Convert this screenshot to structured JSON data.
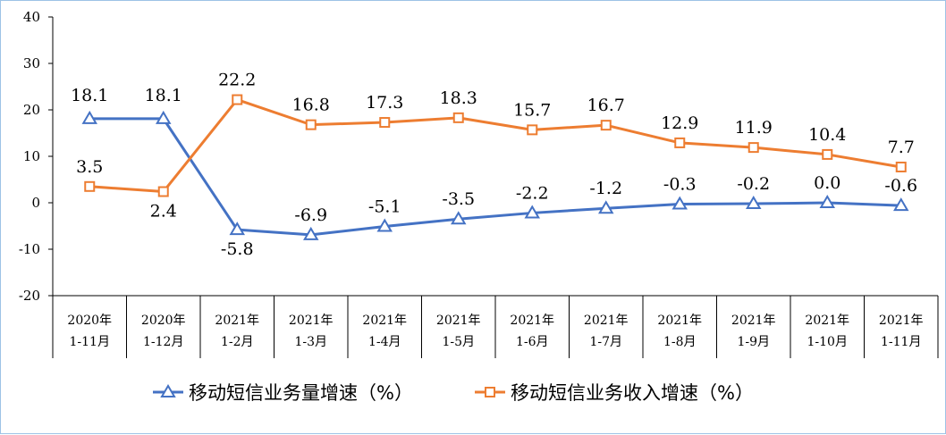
{
  "chart_data": {
    "type": "line",
    "title": "",
    "xlabel": "",
    "ylabel": "",
    "ylim": [
      -20,
      40
    ],
    "yticks": [
      -20,
      -10,
      0,
      10,
      20,
      30,
      40
    ],
    "categories": [
      [
        "2020年",
        "1-11月"
      ],
      [
        "2020年",
        "1-12月"
      ],
      [
        "2021年",
        "1-2月"
      ],
      [
        "2021年",
        "1-3月"
      ],
      [
        "2021年",
        "1-4月"
      ],
      [
        "2021年",
        "1-5月"
      ],
      [
        "2021年",
        "1-6月"
      ],
      [
        "2021年",
        "1-7月"
      ],
      [
        "2021年",
        "1-8月"
      ],
      [
        "2021年",
        "1-9月"
      ],
      [
        "2021年",
        "1-10月"
      ],
      [
        "2021年",
        "1-11月"
      ]
    ],
    "series": [
      {
        "name": "移动短信业务量增速（%）",
        "color": "#4472c4",
        "marker": "triangle",
        "values": [
          18.1,
          18.1,
          -5.8,
          -6.9,
          -5.1,
          -3.5,
          -2.2,
          -1.2,
          -0.3,
          -0.2,
          0.0,
          -0.6
        ],
        "labels": [
          "18.1",
          "18.1",
          "-5.8",
          "-6.9",
          "-5.1",
          "-3.5",
          "-2.2",
          "-1.2",
          "-0.3",
          "-0.2",
          "0.0",
          "-0.6"
        ]
      },
      {
        "name": "移动短信业务收入增速（%）",
        "color": "#ed7d31",
        "marker": "square",
        "values": [
          3.5,
          2.4,
          22.2,
          16.8,
          17.3,
          18.3,
          15.7,
          16.7,
          12.9,
          11.9,
          10.4,
          7.7
        ],
        "labels": [
          "3.5",
          "2.4",
          "22.2",
          "16.8",
          "17.3",
          "18.3",
          "15.7",
          "16.7",
          "12.9",
          "11.9",
          "10.4",
          "7.7"
        ]
      }
    ],
    "grid": false,
    "legend_position": "bottom"
  }
}
